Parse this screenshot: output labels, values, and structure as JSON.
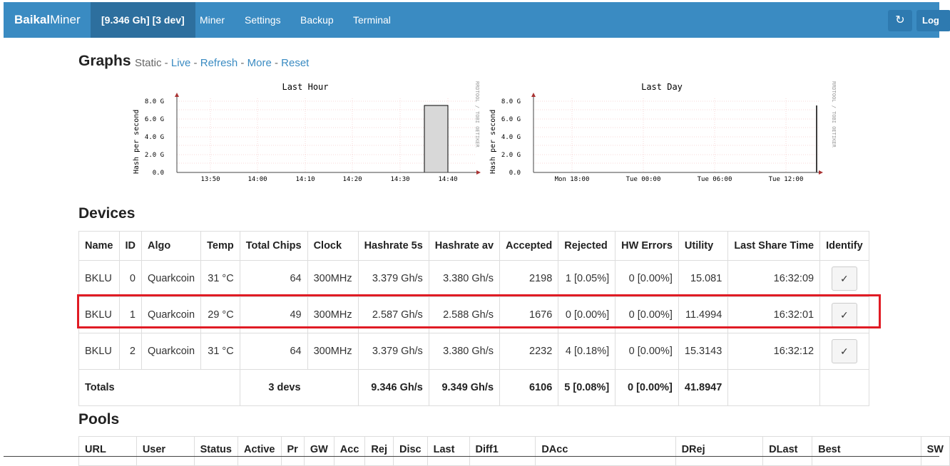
{
  "nav": {
    "brand_bold": "Baikal",
    "brand_rest": "Miner",
    "summary": "[9.346 Gh] [3 dev]",
    "items": [
      "Miner",
      "Settings",
      "Backup",
      "Terminal"
    ],
    "refresh_icon": "refresh-icon",
    "logout": "Log"
  },
  "graphs": {
    "title": "Graphs",
    "static": "Static",
    "links": [
      "Live",
      "Refresh",
      "More",
      "Reset"
    ],
    "hour": {
      "title": "Last Hour",
      "ylabel": "Hash per second",
      "yticks": [
        "8.0 G",
        "6.0 G",
        "4.0 G",
        "2.0 G",
        "0.0"
      ],
      "xticks": [
        "13:50",
        "14:00",
        "14:10",
        "14:20",
        "14:30",
        "14:40"
      ],
      "watermark": "RRDTOOL / TOBI OETIKER"
    },
    "day": {
      "title": "Last Day",
      "ylabel": "Hash per second",
      "yticks": [
        "8.0 G",
        "6.0 G",
        "4.0 G",
        "2.0 G",
        "0.0"
      ],
      "xticks": [
        "Mon 18:00",
        "Tue 00:00",
        "Tue 06:00",
        "Tue 12:00"
      ],
      "watermark": "RRDTOOL / TOBI OETIKER"
    }
  },
  "devices": {
    "title": "Devices",
    "headers": [
      "Name",
      "ID",
      "Algo",
      "Temp",
      "Total Chips",
      "Clock",
      "Hashrate 5s",
      "Hashrate av",
      "Accepted",
      "Rejected",
      "HW Errors",
      "Utility",
      "Last Share Time",
      "Identify"
    ],
    "rows": [
      {
        "name": "BKLU",
        "id": "0",
        "algo": "Quarkcoin",
        "temp": "31 °C",
        "chips": "64",
        "clock": "300MHz",
        "hr5": "3.379 Gh/s",
        "hrav": "3.380 Gh/s",
        "acc": "2198",
        "rej": "1 [0.05%]",
        "hw": "0 [0.00%]",
        "util": "15.081",
        "last": "16:32:09",
        "identify": "✓"
      },
      {
        "name": "BKLU",
        "id": "1",
        "algo": "Quarkcoin",
        "temp": "29 °C",
        "chips": "49",
        "clock": "300MHz",
        "hr5": "2.587 Gh/s",
        "hrav": "2.588 Gh/s",
        "acc": "1676",
        "rej": "0 [0.00%]",
        "hw": "0 [0.00%]",
        "util": "11.4994",
        "last": "16:32:01",
        "identify": "✓"
      },
      {
        "name": "BKLU",
        "id": "2",
        "algo": "Quarkcoin",
        "temp": "31 °C",
        "chips": "64",
        "clock": "300MHz",
        "hr5": "3.379 Gh/s",
        "hrav": "3.380 Gh/s",
        "acc": "2232",
        "rej": "4 [0.18%]",
        "hw": "0 [0.00%]",
        "util": "15.3143",
        "last": "16:32:12",
        "identify": "✓"
      }
    ],
    "totals": {
      "label": "Totals",
      "devs": "3 devs",
      "hr5": "9.346 Gh/s",
      "hrav": "9.349 Gh/s",
      "acc": "6106",
      "rej": "5 [0.08%]",
      "hw": "0 [0.00%]",
      "util": "41.8947"
    }
  },
  "pools": {
    "title": "Pools",
    "headers": [
      "URL",
      "User",
      "Status",
      "Active",
      "Pr",
      "GW",
      "Acc",
      "Rej",
      "Disc",
      "Last",
      "Diff1",
      "DAcc",
      "DRej",
      "DLast",
      "Best",
      "SW"
    ]
  },
  "colors": {
    "navbar": "#3a8bc2",
    "navbar_active": "#2d6f9e",
    "highlight": "#e01b24",
    "link": "#3a8bc2"
  }
}
